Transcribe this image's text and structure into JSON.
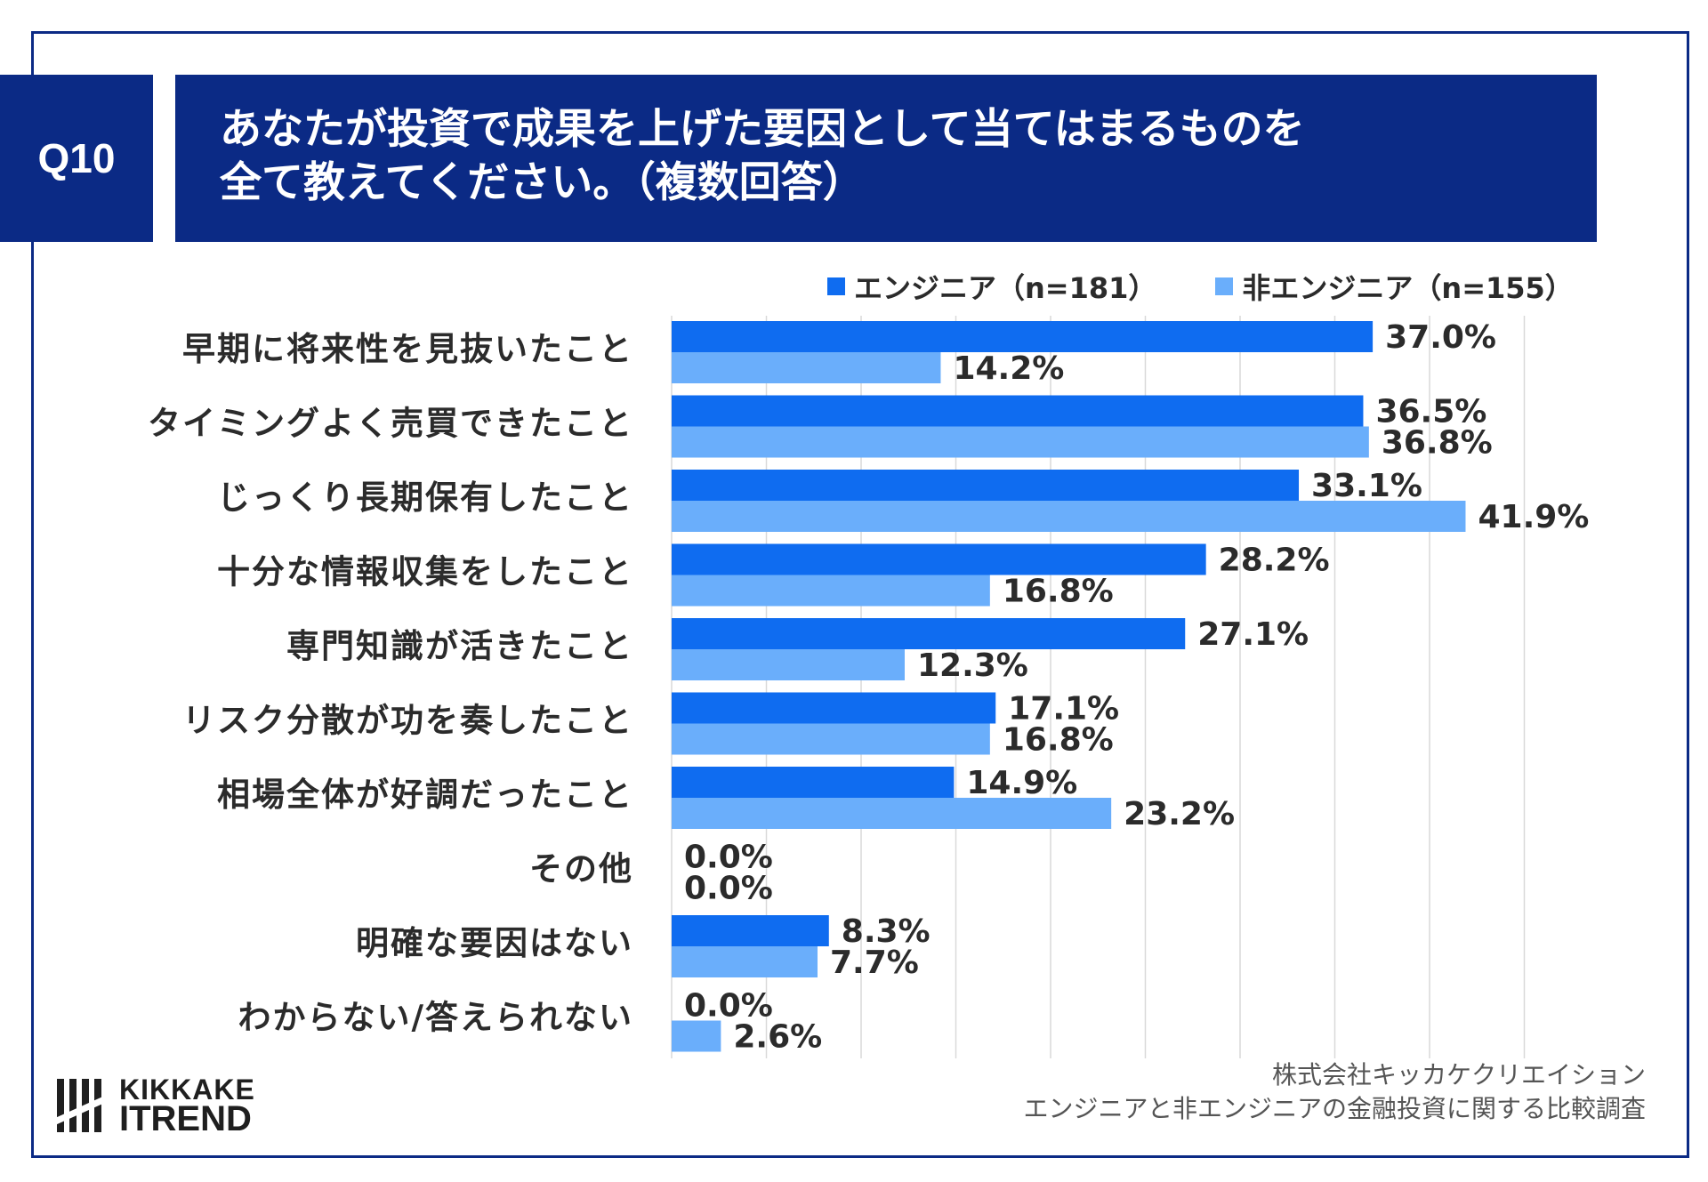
{
  "header": {
    "question_tag": "Q10",
    "title_line1": "あなたが投資で成果を上げた要因として当てはまるものを",
    "title_line2": "全て教えてください。（複数回答）"
  },
  "colors": {
    "navy": "#0b2a85",
    "series_engineer": "#0f6cf0",
    "series_non_engineer": "#6aaefb",
    "grid": "#d9d9d9",
    "text": "#2b2b2b"
  },
  "chart_data": {
    "type": "bar",
    "orientation": "horizontal",
    "title": "",
    "xlabel": "",
    "ylabel": "",
    "xlim": [
      0,
      45
    ],
    "grid": true,
    "legend_position": "top-right",
    "value_suffix": "%",
    "categories": [
      "早期に将来性を見抜いたこと",
      "タイミングよく売買できたこと",
      "じっくり長期保有したこと",
      "十分な情報収集をしたこと",
      "専門知識が活きたこと",
      "リスク分散が功を奏したこと",
      "相場全体が好調だったこと",
      "その他",
      "明確な要因はない",
      "わからない/答えられない"
    ],
    "series": [
      {
        "name": "エンジニア（n=181）",
        "values": [
          37.0,
          36.5,
          33.1,
          28.2,
          27.1,
          17.1,
          14.9,
          0.0,
          8.3,
          0.0
        ]
      },
      {
        "name": "非エンジニア（n=155）",
        "values": [
          14.2,
          36.8,
          41.9,
          16.8,
          12.3,
          16.8,
          23.2,
          0.0,
          7.7,
          2.6
        ]
      }
    ]
  },
  "logo": {
    "line1": "KIKKAKE",
    "line2": "ITREND"
  },
  "footer": {
    "line1": "株式会社キッカケクリエイション",
    "line2": "エンジニアと非エンジニアの金融投資に関する比較調査"
  }
}
